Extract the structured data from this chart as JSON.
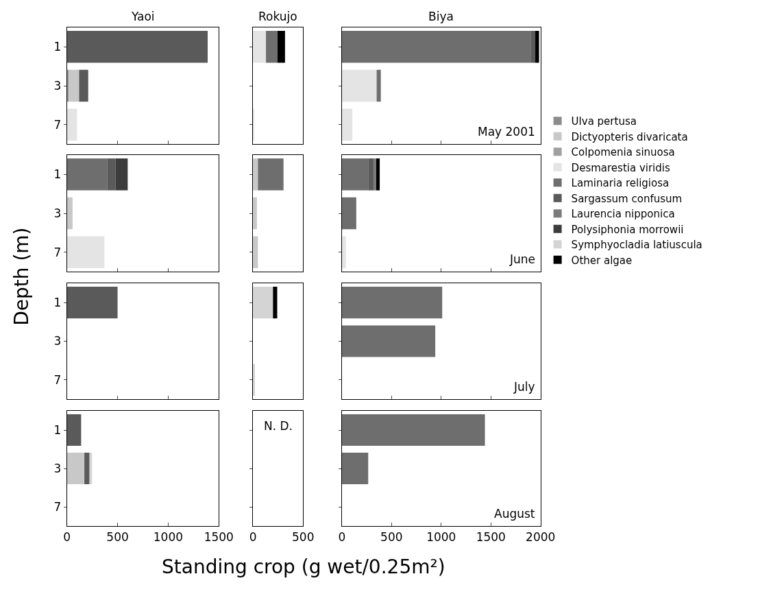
{
  "chart_data": [
    {
      "type": "bar",
      "orientation": "horizontal",
      "stacked": true,
      "title": "Yaoi",
      "ylabel": "Depth (m)",
      "legend": "right",
      "categories": [
        "1",
        "3",
        "7"
      ],
      "xlim": [
        0,
        1500
      ],
      "xticks": [
        0,
        500,
        1000,
        1500
      ],
      "tick_labels": "y",
      "series": [
        {
          "name": "Ulva pertusa",
          "color": "#8c8c8c",
          "values": [
            null,
            15,
            null
          ]
        },
        {
          "name": "Dictyopteris divaricata",
          "color": "#c8c8c8",
          "values": [
            null,
            105,
            null
          ]
        },
        {
          "name": "Colpomenia sinuosa",
          "color": "#a0a0a0",
          "values": [
            null,
            null,
            null
          ]
        },
        {
          "name": "Desmarestia viridis",
          "color": "#e4e4e4",
          "values": [
            null,
            null,
            100
          ]
        },
        {
          "name": "Laminaria religiosa",
          "color": "#6e6e6e",
          "values": [
            null,
            null,
            null
          ]
        },
        {
          "name": "Sargassum confusum",
          "color": "#5a5a5a",
          "values": [
            1390,
            90,
            null
          ]
        },
        {
          "name": "Laurencia nipponica",
          "color": "#7c7c7c",
          "values": [
            null,
            null,
            null
          ]
        },
        {
          "name": "Polysiphonia morrowii",
          "color": "#3c3c3c",
          "values": [
            null,
            null,
            null
          ]
        },
        {
          "name": "Symphyocladia latiuscula",
          "color": "#d4d4d4",
          "values": [
            null,
            null,
            null
          ]
        },
        {
          "name": "Other algae",
          "color": "#000000",
          "values": [
            null,
            null,
            null
          ]
        }
      ]
    },
    {
      "type": "bar",
      "orientation": "horizontal",
      "stacked": true,
      "title": "Rokujo",
      "categories": [
        "1",
        "3",
        "7"
      ],
      "xlim": [
        0,
        500
      ],
      "xticks": [
        0,
        500
      ],
      "tick_labels": false,
      "series": [
        {
          "color": "#e4e4e4",
          "values": [
            130,
            null,
            10
          ]
        },
        {
          "color": "#6e6e6e",
          "values": [
            115,
            null,
            null
          ]
        },
        {
          "color": "#000000",
          "values": [
            75,
            null,
            null
          ]
        }
      ]
    },
    {
      "type": "bar",
      "orientation": "horizontal",
      "stacked": true,
      "title": "Biya",
      "annotations": [
        "May 2001"
      ],
      "categories": [
        "1",
        "3",
        "7"
      ],
      "xlim": [
        0,
        2000
      ],
      "xticks": [
        0,
        500,
        1000,
        1500,
        2000
      ],
      "tick_labels": false,
      "series": [
        {
          "color": "#e4e4e4",
          "values": [
            null,
            350,
            105
          ]
        },
        {
          "color": "#6e6e6e",
          "values": [
            1900,
            42,
            null
          ]
        },
        {
          "color": "#5a5a5a",
          "values": [
            47,
            null,
            null
          ]
        },
        {
          "color": "#000000",
          "values": [
            38,
            null,
            null
          ]
        }
      ]
    },
    {
      "type": "bar",
      "orientation": "horizontal",
      "stacked": true,
      "categories": [
        "1",
        "3",
        "7"
      ],
      "xlim": [
        0,
        1500
      ],
      "xticks": [
        0,
        500,
        1000,
        1500
      ],
      "tick_labels": "y",
      "series": [
        {
          "color": "#c8c8c8",
          "values": [
            null,
            55,
            null
          ]
        },
        {
          "color": "#e4e4e4",
          "values": [
            null,
            null,
            370
          ]
        },
        {
          "color": "#6e6e6e",
          "values": [
            400,
            null,
            null
          ]
        },
        {
          "color": "#5a5a5a",
          "values": [
            80,
            null,
            null
          ]
        },
        {
          "color": "#3c3c3c",
          "values": [
            120,
            null,
            null
          ]
        }
      ]
    },
    {
      "type": "bar",
      "orientation": "horizontal",
      "stacked": true,
      "categories": [
        "1",
        "3",
        "7"
      ],
      "xlim": [
        0,
        500
      ],
      "xticks": [
        0,
        500
      ],
      "tick_labels": false,
      "series": [
        {
          "color": "#c8c8c8",
          "values": [
            50,
            40,
            50
          ]
        },
        {
          "color": "#6e6e6e",
          "values": [
            255,
            null,
            null
          ]
        }
      ]
    },
    {
      "type": "bar",
      "orientation": "horizontal",
      "stacked": true,
      "annotations": [
        "June"
      ],
      "categories": [
        "1",
        "3",
        "7"
      ],
      "xlim": [
        0,
        2000
      ],
      "xticks": [
        0,
        500,
        1000,
        1500,
        2000
      ],
      "tick_labels": false,
      "series": [
        {
          "color": "#e4e4e4",
          "values": [
            null,
            null,
            40
          ]
        },
        {
          "color": "#6e6e6e",
          "values": [
            265,
            145,
            null
          ]
        },
        {
          "color": "#5a5a5a",
          "values": [
            53,
            null,
            null
          ]
        },
        {
          "color": "#7c7c7c",
          "values": [
            27,
            null,
            null
          ]
        },
        {
          "color": "#000000",
          "values": [
            36,
            null,
            null
          ]
        }
      ]
    },
    {
      "type": "bar",
      "orientation": "horizontal",
      "stacked": true,
      "categories": [
        "1",
        "3",
        "7"
      ],
      "xlim": [
        0,
        1500
      ],
      "xticks": [
        0,
        500,
        1000,
        1500
      ],
      "tick_labels": "y",
      "series": [
        {
          "color": "#5a5a5a",
          "values": [
            500,
            null,
            null
          ]
        }
      ]
    },
    {
      "type": "bar",
      "orientation": "horizontal",
      "stacked": true,
      "categories": [
        "1",
        "3",
        "7"
      ],
      "xlim": [
        0,
        500
      ],
      "xticks": [
        0,
        500
      ],
      "tick_labels": false,
      "series": [
        {
          "color": "#d4d4d4",
          "values": [
            200,
            null,
            20
          ]
        },
        {
          "color": "#000000",
          "values": [
            42,
            null,
            null
          ]
        }
      ]
    },
    {
      "type": "bar",
      "orientation": "horizontal",
      "stacked": true,
      "annotations": [
        "July"
      ],
      "categories": [
        "1",
        "3",
        "7"
      ],
      "xlim": [
        0,
        2000
      ],
      "xticks": [
        0,
        500,
        1000,
        1500,
        2000
      ],
      "tick_labels": false,
      "series": [
        {
          "color": "#6e6e6e",
          "values": [
            1010,
            940,
            null
          ]
        }
      ]
    },
    {
      "type": "bar",
      "orientation": "horizontal",
      "stacked": true,
      "categories": [
        "1",
        "3",
        "7"
      ],
      "xlim": [
        0,
        1500
      ],
      "xticks": [
        0,
        500,
        1000,
        1500
      ],
      "series": [
        {
          "color": "#c8c8c8",
          "values": [
            null,
            172,
            null
          ]
        },
        {
          "color": "#5a5a5a",
          "values": [
            140,
            51,
            null
          ]
        },
        {
          "color": "#d4d4d4",
          "values": [
            null,
            24,
            null
          ]
        }
      ]
    },
    {
      "type": "bar",
      "orientation": "horizontal",
      "xlabel": "Standing crop (g wet/0.25m²)",
      "annotations": [
        "N. D."
      ],
      "categories": [
        "1",
        "3",
        "7"
      ],
      "xlim": [
        0,
        500
      ],
      "xticks": [
        0,
        500
      ],
      "tick_labels": "x"
    },
    {
      "type": "bar",
      "orientation": "horizontal",
      "stacked": true,
      "annotations": [
        "August"
      ],
      "categories": [
        "1",
        "3",
        "7"
      ],
      "xlim": [
        0,
        2000
      ],
      "xticks": [
        0,
        500,
        1000,
        1500,
        2000
      ],
      "tick_labels": "x",
      "series": [
        {
          "color": "#6e6e6e",
          "values": [
            1440,
            265,
            null
          ]
        }
      ]
    }
  ]
}
